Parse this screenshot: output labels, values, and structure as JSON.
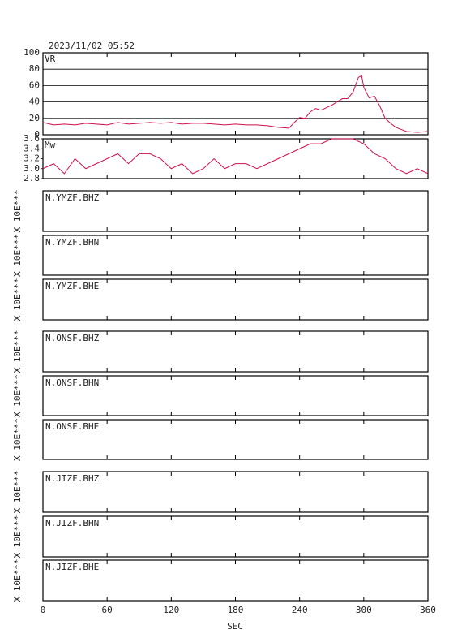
{
  "timestamp": "2023/11/02 05:52",
  "chart_data": [
    {
      "type": "line",
      "xlim": [
        0,
        360
      ],
      "ylim": [
        0,
        100
      ],
      "yticks": [
        0,
        20,
        40,
        60,
        80,
        100
      ],
      "grid": true,
      "x": [
        0,
        10,
        20,
        30,
        40,
        50,
        60,
        70,
        80,
        90,
        100,
        110,
        120,
        130,
        140,
        150,
        160,
        170,
        180,
        190,
        200,
        210,
        220,
        230,
        235,
        240,
        245,
        250,
        255,
        260,
        265,
        270,
        275,
        280,
        285,
        290,
        295,
        298,
        300,
        305,
        310,
        315,
        320,
        325,
        330,
        340,
        350,
        360
      ],
      "series": [
        {
          "name": "VR",
          "color": "#d0104c",
          "values": [
            15,
            12,
            13,
            12,
            14,
            13,
            12,
            15,
            13,
            14,
            15,
            14,
            15,
            13,
            14,
            14,
            13,
            12,
            13,
            12,
            12,
            11,
            9,
            8,
            15,
            21,
            20,
            28,
            32,
            30,
            33,
            36,
            40,
            44,
            44,
            52,
            70,
            72,
            58,
            45,
            47,
            35,
            20,
            14,
            9,
            4,
            3,
            4
          ]
        }
      ]
    },
    {
      "type": "line",
      "xlim": [
        0,
        360
      ],
      "ylim": [
        2.8,
        3.6
      ],
      "yticks": [
        2.8,
        {
          "value": 3,
          "label": "3.0"
        },
        3.2,
        3.4,
        3.6
      ],
      "grid": false,
      "x": [
        0,
        10,
        20,
        30,
        40,
        50,
        60,
        70,
        80,
        90,
        100,
        110,
        120,
        130,
        140,
        150,
        160,
        170,
        180,
        190,
        200,
        210,
        220,
        230,
        240,
        250,
        260,
        270,
        280,
        290,
        300,
        310,
        320,
        330,
        340,
        350,
        360
      ],
      "series": [
        {
          "name": "Mw",
          "color": "#d0104c",
          "values": [
            3.0,
            3.1,
            2.9,
            3.2,
            3.0,
            3.1,
            3.2,
            3.3,
            3.1,
            3.3,
            3.3,
            3.2,
            3.0,
            3.1,
            2.9,
            3.0,
            3.2,
            3.0,
            3.1,
            3.1,
            3.0,
            3.1,
            3.2,
            3.3,
            3.4,
            3.5,
            3.5,
            3.6,
            3.6,
            3.6,
            3.5,
            3.3,
            3.2,
            3.0,
            2.9,
            3.0,
            2.9
          ]
        }
      ]
    }
  ],
  "panels": [
    {
      "label": "N.YMZF.BHZ",
      "scale": "X 10E***"
    },
    {
      "label": "N.YMZF.BHN",
      "scale": "X 10E***"
    },
    {
      "label": "N.YMZF.BHE",
      "scale": "X 10E***"
    },
    {
      "label": "N.ONSF.BHZ",
      "scale": "X 10E***"
    },
    {
      "label": "N.ONSF.BHN",
      "scale": "X 10E***"
    },
    {
      "label": "N.ONSF.BHE",
      "scale": "X 10E***"
    },
    {
      "label": "N.JIZF.BHZ",
      "scale": "X 10E***"
    },
    {
      "label": "N.JIZF.BHN",
      "scale": "X 10E***"
    },
    {
      "label": "N.JIZF.BHE",
      "scale": "X 10E***"
    }
  ],
  "time_axis": {
    "xlim": [
      0,
      360
    ],
    "xticks": [
      0,
      60,
      120,
      180,
      240,
      300,
      360
    ],
    "label": "SEC"
  }
}
